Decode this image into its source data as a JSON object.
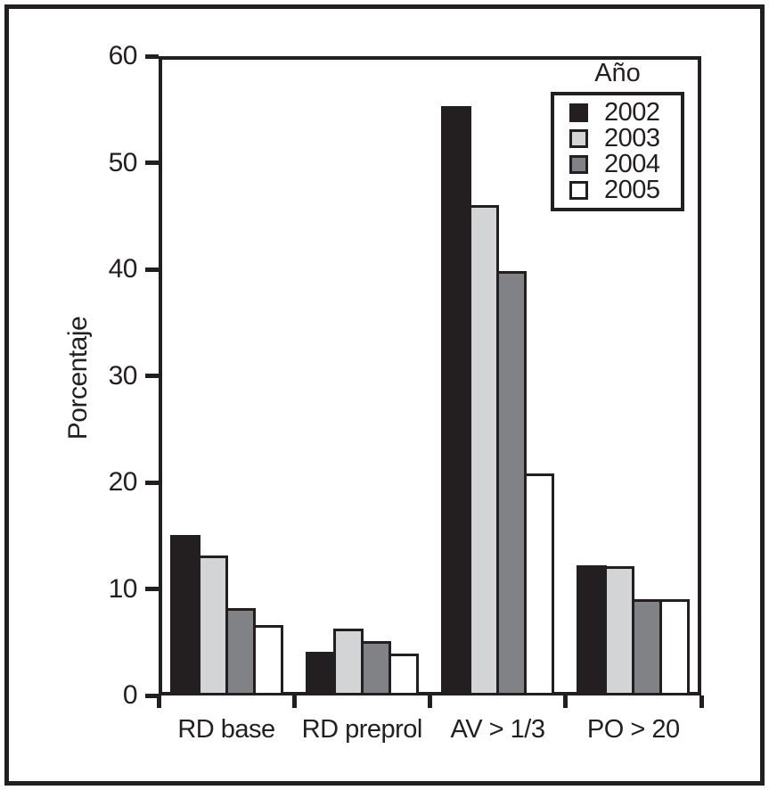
{
  "figure": {
    "background": "#ffffff",
    "border_color": "#231f20"
  },
  "chart_data": {
    "type": "bar",
    "title": "",
    "xlabel": "",
    "ylabel": "Porcentaje",
    "ylim": [
      0,
      60
    ],
    "yticks": [
      0,
      10,
      20,
      30,
      40,
      50,
      60
    ],
    "grid": false,
    "legend_title": "Año",
    "legend_position": "top-right",
    "categories": [
      "RD base",
      "RD preprol",
      "AV > 1/3",
      "PO > 20"
    ],
    "series": [
      {
        "name": "2002",
        "color": "#231f20",
        "values": [
          15.1,
          4.1,
          55.3,
          12.2
        ]
      },
      {
        "name": "2003",
        "color": "#d2d4d5",
        "values": [
          13.1,
          6.3,
          46.0,
          12.1
        ]
      },
      {
        "name": "2004",
        "color": "#808285",
        "values": [
          8.2,
          5.1,
          39.8,
          9.0
        ]
      },
      {
        "name": "2005",
        "color": "#ffffff",
        "values": [
          6.6,
          3.9,
          20.8,
          9.0
        ]
      }
    ]
  }
}
